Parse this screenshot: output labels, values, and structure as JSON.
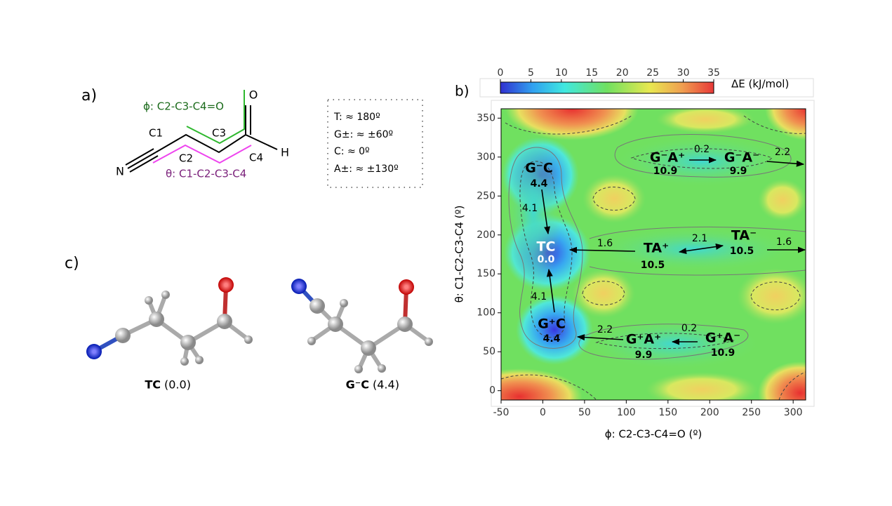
{
  "panel_a": {
    "label": "a)",
    "phi_label": "ϕ: C2-C3-C4=O",
    "theta_label": "θ: C1-C2-C3-C4",
    "atoms": {
      "O": "O",
      "H": "H",
      "N": "N",
      "C1": "C1",
      "C2": "C2",
      "C3": "C3",
      "C4": "C4"
    }
  },
  "definitions": [
    "T: ≈ 180º",
    "G±: ≈ ±60º",
    "C: ≈ 0º",
    "A±: ≈ ±130º"
  ],
  "panel_c": {
    "label": "c)",
    "molecules": [
      {
        "name": "TC",
        "energy": "(0.0)"
      },
      {
        "name": "G⁻C",
        "energy": "(4.4)"
      }
    ]
  },
  "chart_data": {
    "type": "contour",
    "panel_label": "b)",
    "x_label": "ϕ: C2-C3-C4=O (º)",
    "y_label": "θ: C1-C2-C3-C4 (º)",
    "xlim": [
      -50,
      315
    ],
    "xticks": [
      -50,
      0,
      50,
      100,
      150,
      200,
      250,
      300
    ],
    "ylim": [
      -12,
      362
    ],
    "yticks": [
      0,
      50,
      100,
      150,
      200,
      250,
      300,
      350
    ],
    "colorbar": {
      "label": "ΔE (kJ/mol)",
      "lim": [
        0,
        35
      ],
      "ticks": [
        0,
        5,
        10,
        15,
        20,
        25,
        30,
        35
      ]
    },
    "states": [
      {
        "name": "G⁻C",
        "energy": "4.4"
      },
      {
        "name": "TC",
        "energy": "0.0"
      },
      {
        "name": "G⁺C",
        "energy": "4.4"
      },
      {
        "name": "TA⁺",
        "energy": "10.5"
      },
      {
        "name": "TA⁻",
        "energy": "10.5"
      },
      {
        "name": "G⁻A⁺",
        "energy": "10.9"
      },
      {
        "name": "G⁻A⁻",
        "energy": "9.9"
      },
      {
        "name": "G⁺A⁺",
        "energy": "9.9"
      },
      {
        "name": "G⁺A⁻",
        "energy": "10.9"
      }
    ],
    "barriers": [
      "4.1",
      "4.1",
      "1.6",
      "2.1",
      "1.6",
      "2.2",
      "0.2",
      "0.2",
      "2.2"
    ]
  }
}
